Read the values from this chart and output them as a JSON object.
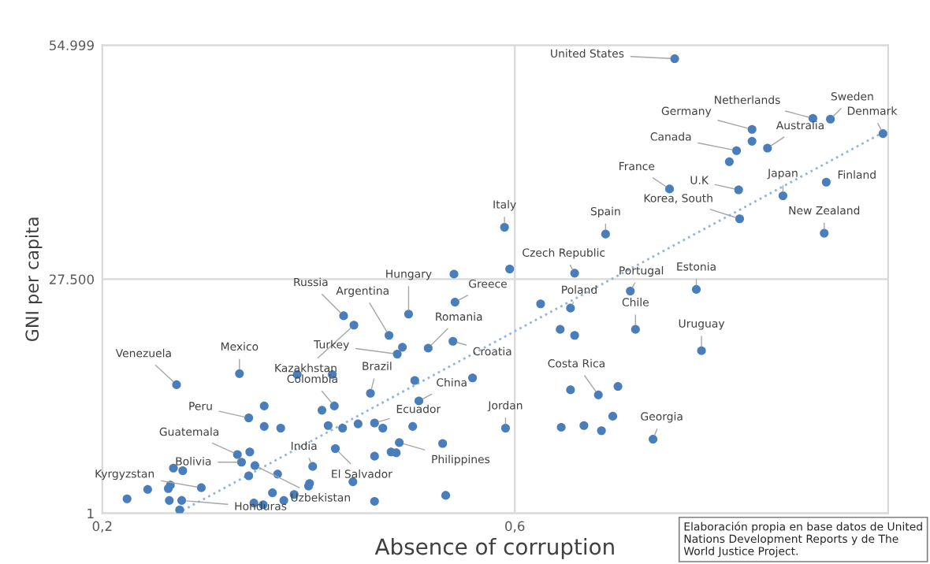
{
  "chart_data": {
    "type": "scatter",
    "xlabel": "Absence of corruption",
    "ylabel": "GNI per capita",
    "xlim": [
      0.2,
      0.962
    ],
    "ylim": [
      1,
      54999
    ],
    "xticks": [
      {
        "value": 0.2,
        "label": "0,2"
      },
      {
        "value": 0.6,
        "label": "0,6"
      }
    ],
    "yticks": [
      1,
      {
        "value": 27500,
        "label": "27.500"
      },
      {
        "value": 54999,
        "label": "54.999"
      }
    ],
    "grid": true,
    "marker": "circle",
    "series": [
      {
        "color": "#4a7ebb",
        "x": [
          0.755,
          0.889,
          0.906,
          0.957,
          0.83,
          0.845,
          0.815,
          0.75,
          0.817,
          0.86,
          0.902,
          0.818,
          0.9,
          0.59,
          0.688,
          0.658,
          0.712,
          0.776,
          0.654,
          0.717,
          0.781,
          0.681,
          0.591,
          0.734,
          0.497,
          0.542,
          0.434,
          0.444,
          0.478,
          0.486,
          0.516,
          0.54,
          0.272,
          0.333,
          0.425,
          0.46,
          0.507,
          0.342,
          0.464,
          0.488,
          0.426,
          0.404,
          0.331,
          0.335,
          0.348,
          0.296,
          0.277,
          0.83,
          0.808,
          0.595,
          0.625,
          0.644,
          0.658,
          0.654,
          0.7,
          0.645,
          0.667,
          0.684,
          0.695,
          0.541,
          0.491,
          0.559,
          0.389,
          0.423,
          0.503,
          0.413,
          0.357,
          0.357,
          0.373,
          0.419,
          0.433,
          0.448,
          0.472,
          0.501,
          0.53,
          0.48,
          0.485,
          0.464,
          0.443,
          0.464,
          0.533,
          0.343,
          0.342,
          0.37,
          0.401,
          0.4,
          0.365,
          0.386,
          0.376,
          0.347,
          0.356,
          0.269,
          0.278,
          0.244,
          0.224,
          0.264,
          0.266,
          0.265,
          0.275
        ],
        "values": [
          53400,
          46400,
          46300,
          44600,
          45100,
          42900,
          42600,
          38100,
          38000,
          37300,
          38900,
          34600,
          32900,
          33600,
          32800,
          28200,
          26100,
          26300,
          24100,
          21600,
          19100,
          13900,
          10000,
          8700,
          23400,
          24800,
          23200,
          22100,
          20900,
          18700,
          19400,
          20200,
          15100,
          16400,
          12600,
          14100,
          13200,
          11200,
          10600,
          8300,
          7600,
          5500,
          6900,
          6000,
          5600,
          3000,
          1500,
          43700,
          41300,
          28700,
          24600,
          21600,
          20900,
          14500,
          14900,
          10100,
          10300,
          9700,
          11400,
          28100,
          19500,
          15900,
          16300,
          16300,
          15600,
          12100,
          12600,
          10200,
          10000,
          10300,
          10000,
          10500,
          10000,
          10200,
          8200,
          7200,
          7100,
          6700,
          3700,
          1400,
          2100,
          7200,
          4400,
          4600,
          3500,
          3200,
          2400,
          2200,
          1500,
          1200,
          1000,
          5300,
          5000,
          2800,
          1700,
          2900,
          3300,
          1500,
          400
        ]
      },
      {
        "type": "line",
        "color": "#8fb4de",
        "line_style": "dotted",
        "marker": "none",
        "x": [
          0.273,
          0.955
        ],
        "values": [
          1,
          44600
        ]
      }
    ],
    "annotations": [
      {
        "text": "United States",
        "x": 0.755,
        "y": 53400
      },
      {
        "text": "Netherlands",
        "x": 0.889,
        "y": 46400
      },
      {
        "text": "Sweden",
        "x": 0.906,
        "y": 46300
      },
      {
        "text": "Denmark",
        "x": 0.957,
        "y": 44600
      },
      {
        "text": "Germany",
        "x": 0.83,
        "y": 45100
      },
      {
        "text": "Australia",
        "x": 0.845,
        "y": 42900
      },
      {
        "text": "Canada",
        "x": 0.815,
        "y": 42600
      },
      {
        "text": "France",
        "x": 0.75,
        "y": 38100
      },
      {
        "text": "U.K",
        "x": 0.817,
        "y": 38000
      },
      {
        "text": "Japan",
        "x": 0.86,
        "y": 37300
      },
      {
        "text": "Finland",
        "x": 0.902,
        "y": 38900
      },
      {
        "text": "Korea, South",
        "x": 0.818,
        "y": 34600
      },
      {
        "text": "New Zealand",
        "x": 0.9,
        "y": 32900
      },
      {
        "text": "Italy",
        "x": 0.59,
        "y": 33600
      },
      {
        "text": "Spain",
        "x": 0.688,
        "y": 32800
      },
      {
        "text": "Czech Republic",
        "x": 0.658,
        "y": 28200
      },
      {
        "text": "Portugal",
        "x": 0.712,
        "y": 26100
      },
      {
        "text": "Estonia",
        "x": 0.776,
        "y": 26300
      },
      {
        "text": "Poland",
        "x": 0.654,
        "y": 24100
      },
      {
        "text": "Chile",
        "x": 0.717,
        "y": 21600
      },
      {
        "text": "Uruguay",
        "x": 0.781,
        "y": 19100
      },
      {
        "text": "Costa Rica",
        "x": 0.681,
        "y": 13900
      },
      {
        "text": "Jordan",
        "x": 0.591,
        "y": 10000
      },
      {
        "text": "Georgia",
        "x": 0.734,
        "y": 8700
      },
      {
        "text": "Hungary",
        "x": 0.497,
        "y": 23400
      },
      {
        "text": "Greece",
        "x": 0.542,
        "y": 24800
      },
      {
        "text": "Russia",
        "x": 0.434,
        "y": 23200
      },
      {
        "text": "Kazakhstan",
        "x": 0.444,
        "y": 22100
      },
      {
        "text": "Argentina",
        "x": 0.478,
        "y": 20900
      },
      {
        "text": "Turkey",
        "x": 0.486,
        "y": 18700
      },
      {
        "text": "Romania",
        "x": 0.516,
        "y": 19400
      },
      {
        "text": "Croatia",
        "x": 0.54,
        "y": 20200
      },
      {
        "text": "Venezuela",
        "x": 0.272,
        "y": 15100
      },
      {
        "text": "Mexico",
        "x": 0.333,
        "y": 16400
      },
      {
        "text": "Colombia",
        "x": 0.425,
        "y": 12600
      },
      {
        "text": "Brazil",
        "x": 0.46,
        "y": 14100
      },
      {
        "text": "China",
        "x": 0.507,
        "y": 13200
      },
      {
        "text": "Peru",
        "x": 0.342,
        "y": 11200
      },
      {
        "text": "Ecuador",
        "x": 0.464,
        "y": 10600
      },
      {
        "text": "Philippines",
        "x": 0.488,
        "y": 8300
      },
      {
        "text": "El Salvador",
        "x": 0.426,
        "y": 7600
      },
      {
        "text": "India",
        "x": 0.404,
        "y": 5500
      },
      {
        "text": "Guatemala",
        "x": 0.331,
        "y": 6900
      },
      {
        "text": "Bolivia",
        "x": 0.335,
        "y": 6000
      },
      {
        "text": "Uzbekistan",
        "x": 0.348,
        "y": 5600
      },
      {
        "text": "Kyrgyzstan",
        "x": 0.296,
        "y": 3000
      },
      {
        "text": "Honduras",
        "x": 0.277,
        "y": 1500
      },
      "Elaboración propia en base datos de United Nations Development Reports y de The World Justice Project."
    ]
  }
}
